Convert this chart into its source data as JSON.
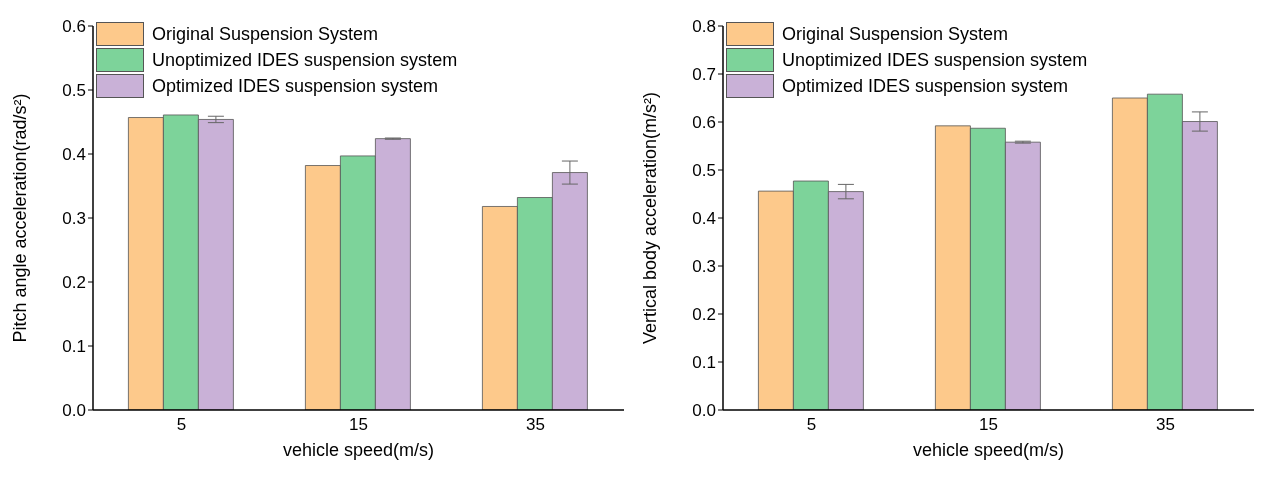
{
  "chart_data": [
    {
      "type": "bar",
      "categories": [
        "5",
        "15",
        "35"
      ],
      "xlabel": "vehicle speed(m/s)",
      "ylabel": "Pitch angle acceleration(rad/s²)",
      "ylim": [
        0,
        0.6
      ],
      "yticks": [
        {
          "value": 0,
          "label": "0.0"
        },
        0.1,
        0.2,
        0.3,
        0.4,
        0.5,
        0.6
      ],
      "grid": false,
      "legend": "top left",
      "series": [
        {
          "name": "Original Suspension System",
          "color": "#fdc98b",
          "values": [
            0.457,
            0.382,
            0.318
          ]
        },
        {
          "name": "Unoptimized IDES suspension system",
          "color": "#7dd39a",
          "values": [
            0.461,
            0.397,
            0.332
          ]
        },
        {
          "name": "Optimized IDES suspension system",
          "color": "#c9b1d7",
          "values": [
            0.454,
            0.424,
            0.371
          ],
          "errors": [
            0.005,
            0.001,
            0.018
          ]
        }
      ]
    },
    {
      "type": "bar",
      "categories": [
        "5",
        "15",
        "35"
      ],
      "xlabel": "vehicle speed(m/s)",
      "ylabel": "Vertical body acceleration(m/s²)",
      "ylim": [
        0,
        0.8
      ],
      "yticks": [
        {
          "value": 0,
          "label": "0.0"
        },
        0.1,
        0.2,
        0.3,
        0.4,
        0.5,
        0.6,
        0.7,
        0.8
      ],
      "grid": false,
      "legend": "top left",
      "series": [
        {
          "name": "Original Suspension System",
          "color": "#fdc98b",
          "values": [
            0.456,
            0.592,
            0.65
          ]
        },
        {
          "name": "Unoptimized IDES suspension system",
          "color": "#7dd39a",
          "values": [
            0.477,
            0.587,
            0.658
          ]
        },
        {
          "name": "Optimized IDES suspension system",
          "color": "#c9b1d7",
          "values": [
            0.455,
            0.558,
            0.601
          ],
          "errors": [
            0.015,
            0.002,
            0.02
          ]
        }
      ]
    }
  ]
}
